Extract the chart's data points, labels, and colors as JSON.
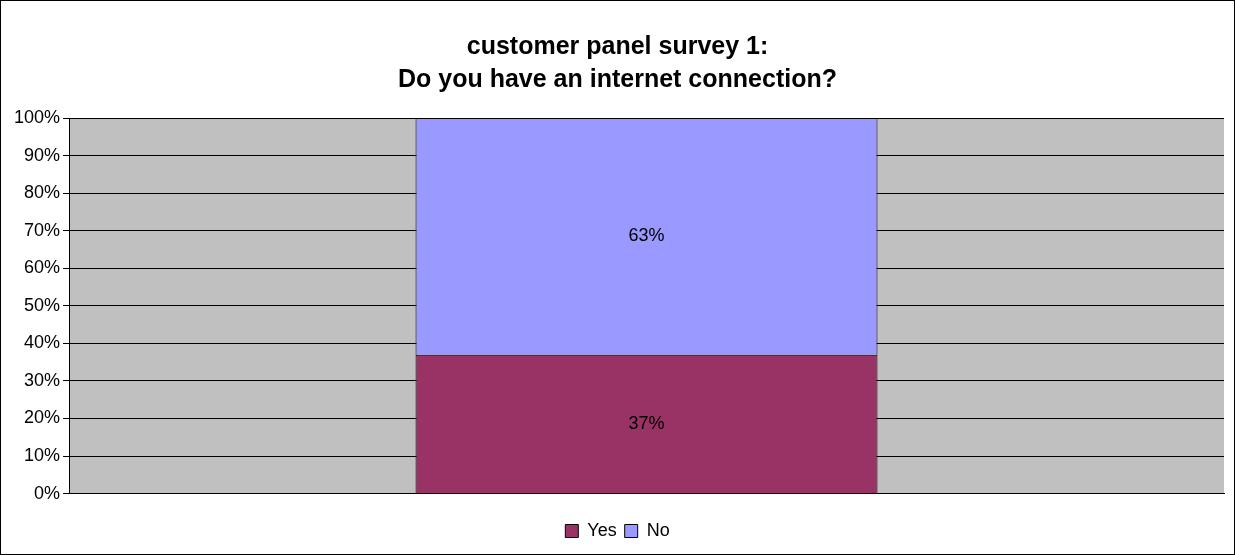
{
  "chart_data": {
    "type": "bar",
    "title": [
      "customer panel survey 1:",
      "Do you have an internet connection?"
    ],
    "categories": [
      null
    ],
    "stacked": true,
    "series": [
      {
        "name": "Yes",
        "color": "#993366",
        "values": [
          37
        ],
        "value_labels": [
          "37%"
        ]
      },
      {
        "name": "No",
        "color": "#9999ff",
        "values": [
          63
        ],
        "value_labels": [
          "63%"
        ]
      }
    ],
    "ylim": [
      0,
      100
    ],
    "yticks": [
      {
        "value": 0,
        "label": "0%"
      },
      {
        "value": 10,
        "label": "10%"
      },
      {
        "value": 20,
        "label": "20%"
      },
      {
        "value": 30,
        "label": "30%"
      },
      {
        "value": 40,
        "label": "40%"
      },
      {
        "value": 50,
        "label": "50%"
      },
      {
        "value": 60,
        "label": "60%"
      },
      {
        "value": 70,
        "label": "70%"
      },
      {
        "value": 80,
        "label": "80%"
      },
      {
        "value": 90,
        "label": "90%"
      },
      {
        "value": 100,
        "label": "100%"
      }
    ],
    "grid": "y",
    "legend": "bottom"
  }
}
